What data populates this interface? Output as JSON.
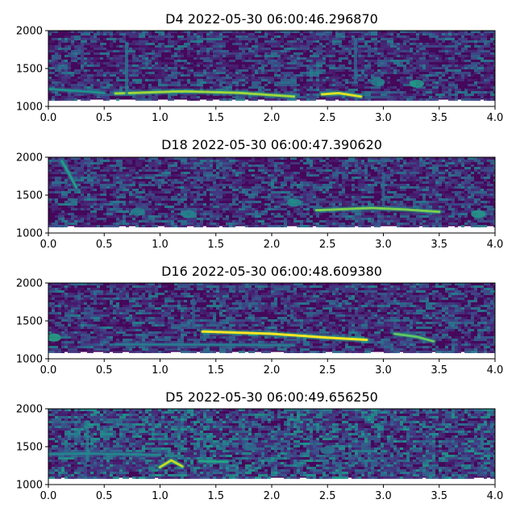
{
  "chart_data": [
    {
      "type": "heatmap",
      "title": "D4 2022-05-30 06:00:46.296870",
      "xlim": [
        0.0,
        4.0
      ],
      "ylim": [
        1000,
        2000
      ],
      "xticks": [
        "0.0",
        "0.5",
        "1.0",
        "1.5",
        "2.0",
        "2.5",
        "3.0",
        "3.5",
        "4.0"
      ],
      "yticks": [
        "1000",
        "1500",
        "2000"
      ],
      "colormap": "viridis",
      "features": [
        {
          "kind": "tone",
          "x": [
            0.6,
            1.2,
            1.7,
            2.2
          ],
          "y": [
            1170,
            1200,
            1180,
            1130
          ],
          "intensity": 0.85
        },
        {
          "kind": "tone",
          "x": [
            2.45,
            2.6,
            2.8
          ],
          "y": [
            1160,
            1175,
            1130
          ],
          "intensity": 0.95
        },
        {
          "kind": "tone",
          "x": [
            0.0,
            0.3,
            0.5
          ],
          "y": [
            1230,
            1200,
            1180
          ],
          "intensity": 0.5
        },
        {
          "kind": "streak",
          "x": 0.7,
          "y": [
            1150,
            1850
          ],
          "intensity": 0.4
        },
        {
          "kind": "streak",
          "x": 2.75,
          "y": [
            1300,
            1900
          ],
          "intensity": 0.35
        },
        {
          "kind": "blob",
          "x": 3.3,
          "y": 1300,
          "intensity": 0.55
        },
        {
          "kind": "blob",
          "x": 2.95,
          "y": 1320,
          "intensity": 0.45
        }
      ]
    },
    {
      "type": "heatmap",
      "title": "D18 2022-05-30 06:00:47.390620",
      "xlim": [
        0.0,
        4.0
      ],
      "ylim": [
        1000,
        2000
      ],
      "xticks": [
        "0.0",
        "0.5",
        "1.0",
        "1.5",
        "2.0",
        "2.5",
        "3.0",
        "3.5",
        "4.0"
      ],
      "yticks": [
        "1000",
        "1500",
        "2000"
      ],
      "colormap": "viridis",
      "features": [
        {
          "kind": "tone",
          "x": [
            0.12,
            0.18,
            0.25
          ],
          "y": [
            1950,
            1800,
            1600
          ],
          "intensity": 0.55
        },
        {
          "kind": "tone",
          "x": [
            2.4,
            2.9,
            3.2,
            3.5
          ],
          "y": [
            1300,
            1330,
            1310,
            1280
          ],
          "intensity": 0.8
        },
        {
          "kind": "blob",
          "x": 2.2,
          "y": 1400,
          "intensity": 0.5
        },
        {
          "kind": "blob",
          "x": 0.8,
          "y": 1280,
          "intensity": 0.45
        },
        {
          "kind": "blob",
          "x": 1.25,
          "y": 1250,
          "intensity": 0.45
        },
        {
          "kind": "blob",
          "x": 3.85,
          "y": 1250,
          "intensity": 0.55
        },
        {
          "kind": "streak",
          "x": 3.0,
          "y": [
            1350,
            1800
          ],
          "intensity": 0.35
        }
      ]
    },
    {
      "type": "heatmap",
      "title": "D16 2022-05-30 06:00:48.609380",
      "xlim": [
        0.0,
        4.0
      ],
      "ylim": [
        1000,
        2000
      ],
      "xticks": [
        "0.0",
        "0.5",
        "1.0",
        "1.5",
        "2.0",
        "2.5",
        "3.0",
        "3.5",
        "4.0"
      ],
      "yticks": [
        "1000",
        "1500",
        "2000"
      ],
      "colormap": "viridis",
      "features": [
        {
          "kind": "tone",
          "x": [
            1.38,
            2.0,
            2.5,
            2.85
          ],
          "y": [
            1360,
            1330,
            1280,
            1250
          ],
          "intensity": 1.0
        },
        {
          "kind": "tone",
          "x": [
            0.6,
            1.5,
            2.2
          ],
          "y": [
            1190,
            1185,
            1180
          ],
          "intensity": 0.4
        },
        {
          "kind": "tone",
          "x": [
            3.1,
            3.3,
            3.45
          ],
          "y": [
            1330,
            1290,
            1230
          ],
          "intensity": 0.75
        },
        {
          "kind": "blob",
          "x": 0.05,
          "y": 1280,
          "intensity": 0.6
        },
        {
          "kind": "streak",
          "x": 1.3,
          "y": [
            1400,
            1800
          ],
          "intensity": 0.3
        }
      ]
    },
    {
      "type": "heatmap",
      "title": "D5 2022-05-30 06:00:49.656250",
      "xlim": [
        0.0,
        4.0
      ],
      "ylim": [
        1000,
        2000
      ],
      "xticks": [
        "0.0",
        "0.5",
        "1.0",
        "1.5",
        "2.0",
        "2.5",
        "3.0",
        "3.5",
        "4.0"
      ],
      "yticks": [
        "1000",
        "1500",
        "2000"
      ],
      "colormap": "viridis",
      "features": [
        {
          "kind": "tone",
          "x": [
            1.0,
            1.1,
            1.2
          ],
          "y": [
            1230,
            1320,
            1240
          ],
          "intensity": 0.9
        },
        {
          "kind": "tone",
          "x": [
            1.35,
            1.6
          ],
          "y": [
            1310,
            1300
          ],
          "intensity": 0.6
        },
        {
          "kind": "tone",
          "x": [
            0.0,
            0.3,
            0.7,
            1.0
          ],
          "y": [
            1400,
            1410,
            1400,
            1390
          ],
          "intensity": 0.45
        },
        {
          "kind": "streak",
          "x": 0.35,
          "y": [
            1300,
            1850
          ],
          "intensity": 0.45
        },
        {
          "kind": "blob",
          "x": 2.5,
          "y": 1450,
          "intensity": 0.4
        },
        {
          "kind": "blob",
          "x": 1.8,
          "y": 1500,
          "intensity": 0.35
        }
      ]
    }
  ]
}
